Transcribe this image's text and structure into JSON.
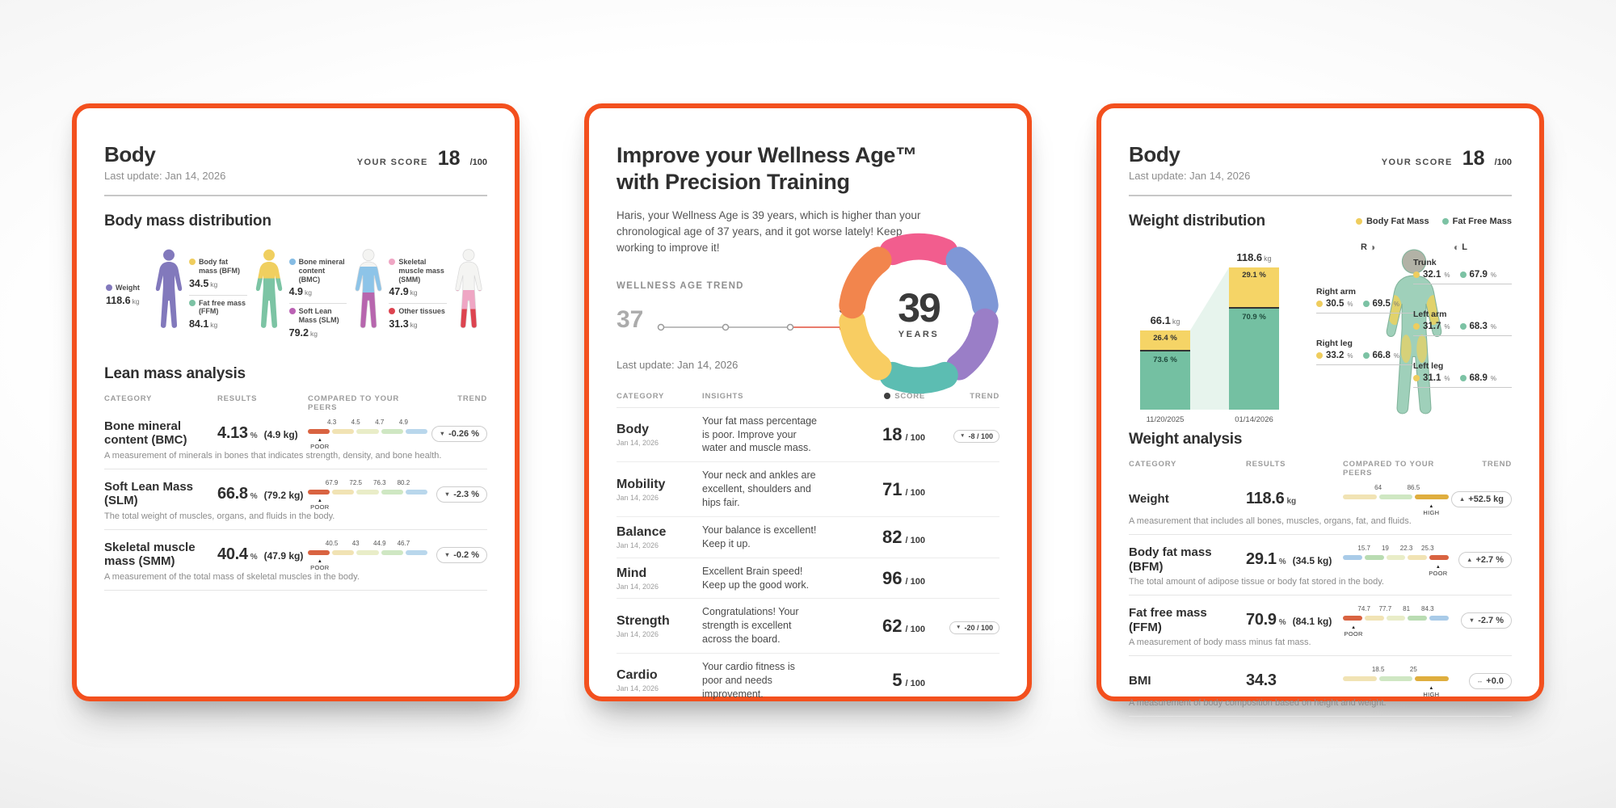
{
  "glyphs": {
    "caret": "▲",
    "down": "▼",
    "up": "▲",
    "flat": "↔",
    "rotate_right_icon": "◑",
    "rotate_left_icon": "◐"
  },
  "colors": {
    "accent": "#f3501e",
    "weight_purple": "#8279bc",
    "bfm_yellow": "#efcd5e",
    "ffm_green": "#7cc2a4",
    "bmc_blue": "#85bce4",
    "slm_magenta": "#bb62b4",
    "smm_pink": "#efa6c4",
    "other_red": "#dd4450",
    "peer_poor_red": "#d96341",
    "peer_high_gold": "#dfae3e",
    "score_dot": "#3f3f3f",
    "trend_line_red": "#e2503d",
    "ring": [
      "#f25d8e",
      "#7f97d6",
      "#9a7ec7",
      "#5cbdb2",
      "#f8cd62",
      "#f2854d"
    ]
  },
  "card1": {
    "title": "Body",
    "last_update": "Last update: Jan 14, 2026",
    "score": {
      "label": "YOUR SCORE",
      "value": "18",
      "max": "/100"
    },
    "distribution": {
      "title": "Body mass distribution",
      "groups": [
        {
          "items": [
            {
              "name": "Weight",
              "value": "118.6",
              "unit": "kg"
            }
          ]
        },
        {
          "items": [
            {
              "name": "Body fat mass (BFM)",
              "value": "34.5",
              "unit": "kg"
            },
            {
              "name": "Fat free mass (FFM)",
              "value": "84.1",
              "unit": "kg"
            }
          ]
        },
        {
          "items": [
            {
              "name": "Bone mineral content (BMC)",
              "value": "4.9",
              "unit": "kg"
            },
            {
              "name": "Soft Lean Mass (SLM)",
              "value": "79.2",
              "unit": "kg"
            }
          ]
        },
        {
          "items": [
            {
              "name": "Skeletal muscle mass (SMM)",
              "value": "47.9",
              "unit": "kg"
            },
            {
              "name": "Other tissues",
              "value": "31.3",
              "unit": "kg"
            }
          ]
        }
      ]
    },
    "analysis": {
      "title": "Lean mass analysis",
      "headers": {
        "category": "CATEGORY",
        "results": "RESULTS",
        "compared": "COMPARED TO YOUR PEERS",
        "trend": "TREND"
      },
      "rows": [
        {
          "name": "Bone mineral content (BMC)",
          "value": "4.13",
          "unit": "%",
          "secondary": "(4.9 kg)",
          "ticks": [
            "4.3",
            "4.5",
            "4.7",
            "4.9"
          ],
          "marker": "POOR",
          "trend_icon": "▼",
          "trend": "-0.26 %",
          "desc": "A measurement of minerals in bones that indicates strength, density, and bone health."
        },
        {
          "name": "Soft Lean Mass (SLM)",
          "value": "66.8",
          "unit": "%",
          "secondary": "(79.2 kg)",
          "ticks": [
            "67.9",
            "72.5",
            "76.3",
            "80.2"
          ],
          "marker": "POOR",
          "trend_icon": "▼",
          "trend": "-2.3 %",
          "desc": "The total weight of muscles, organs, and fluids in the body."
        },
        {
          "name": "Skeletal muscle mass (SMM)",
          "value": "40.4",
          "unit": "%",
          "secondary": "(47.9 kg)",
          "ticks": [
            "40.5",
            "43",
            "44.9",
            "46.7"
          ],
          "marker": "POOR",
          "trend_icon": "▼",
          "trend": "-0.2 %",
          "desc": "A measurement of the total mass of skeletal muscles in the body."
        }
      ]
    }
  },
  "card2": {
    "title_line1": "Improve your Wellness Age™",
    "title_line2": "with Precision Training",
    "intro": "Haris, your Wellness Age is 39 years, which is higher than your chronological age of 37 years, and it got worse lately! Keep working to improve it!",
    "trend_label": "WELLNESS AGE TREND",
    "trend_start": "37",
    "trend_end": "39",
    "last_update": "Last update: Jan 14, 2026",
    "ring": {
      "value": "39",
      "unit": "YEARS"
    },
    "table": {
      "headers": {
        "category": "CATEGORY",
        "insights": "INSIGHTS",
        "score": "SCORE",
        "trend": "TREND"
      },
      "rows": [
        {
          "category": "Body",
          "date": "Jan 14, 2026",
          "insight": "Your fat mass percentage is poor. Improve your water and muscle mass.",
          "score": "18",
          "score_max": "/ 100",
          "trend_icon": "▼",
          "trend": "-8 / 100"
        },
        {
          "category": "Mobility",
          "date": "Jan 14, 2026",
          "insight": "Your neck and ankles are excellent, shoulders and hips fair.",
          "score": "71",
          "score_max": "/ 100"
        },
        {
          "category": "Balance",
          "date": "Jan 14, 2026",
          "insight": "Your balance is excellent! Keep it up.",
          "score": "82",
          "score_max": "/ 100"
        },
        {
          "category": "Mind",
          "date": "Jan 14, 2026",
          "insight": "Excellent Brain speed! Keep up the good work.",
          "score": "96",
          "score_max": "/ 100"
        },
        {
          "category": "Strength",
          "date": "Jan 14, 2026",
          "insight": "Congratulations! Your strength is excellent across the board.",
          "score": "62",
          "score_max": "/ 100",
          "trend_icon": "▼",
          "trend": "-20 / 100"
        },
        {
          "category": "Cardio",
          "date": "Jan 14, 2026",
          "insight": "Your cardio fitness is poor and needs improvement.",
          "score": "5",
          "score_max": "/ 100"
        }
      ]
    }
  },
  "card3": {
    "title": "Body",
    "last_update": "Last update: Jan 14, 2026",
    "score": {
      "label": "YOUR SCORE",
      "value": "18",
      "max": "/100"
    },
    "distribution": {
      "title": "Weight distribution",
      "legend": [
        {
          "label": "Body Fat Mass"
        },
        {
          "label": "Fat Free Mass"
        }
      ],
      "bars": [
        {
          "total": "66.1",
          "unit": "kg",
          "fat_label": "26.4 %",
          "ffm_label": "73.6 %",
          "date": "11/20/2025",
          "total_num": 66.1,
          "fat_num": 26.4
        },
        {
          "total": "118.6",
          "unit": "kg",
          "fat_label": "29.1 %",
          "ffm_label": "70.9 %",
          "date": "01/14/2026",
          "total_num": 118.6,
          "fat_num": 29.1
        }
      ],
      "rotate": {
        "left_letter": "R",
        "right_letter": "L"
      },
      "segments": {
        "trunk": {
          "name": "Trunk",
          "fat": "32.1",
          "ffm": "67.9",
          "unit": "%"
        },
        "right_arm": {
          "name": "Right arm",
          "fat": "30.5",
          "ffm": "69.5",
          "unit": "%"
        },
        "left_arm": {
          "name": "Left arm",
          "fat": "31.7",
          "ffm": "68.3",
          "unit": "%"
        },
        "right_leg": {
          "name": "Right leg",
          "fat": "33.2",
          "ffm": "66.8",
          "unit": "%"
        },
        "left_leg": {
          "name": "Left leg",
          "fat": "31.1",
          "ffm": "68.9",
          "unit": "%"
        }
      }
    },
    "analysis": {
      "title": "Weight analysis",
      "headers": {
        "category": "CATEGORY",
        "results": "RESULTS",
        "compared": "COMPARED TO YOUR PEERS",
        "trend": "TREND"
      },
      "rows": [
        {
          "name": "Weight",
          "value": "118.6",
          "unit": "kg",
          "ticks": [
            "64",
            "86.5"
          ],
          "marker": "HIGH",
          "trend_icon": "▲",
          "trend": "+52.5 kg",
          "desc": "A measurement that includes all bones, muscles, organs, fat, and fluids."
        },
        {
          "name": "Body fat mass (BFM)",
          "value": "29.1",
          "unit": "%",
          "secondary": "(34.5 kg)",
          "ticks": [
            "15.7",
            "19",
            "22.3",
            "25.3"
          ],
          "marker": "POOR",
          "trend_icon": "▲",
          "trend": "+2.7 %",
          "desc": "The total amount of adipose tissue or body fat stored in the body."
        },
        {
          "name": "Fat free mass (FFM)",
          "value": "70.9",
          "unit": "%",
          "secondary": "(84.1 kg)",
          "ticks": [
            "74.7",
            "77.7",
            "81",
            "84.3"
          ],
          "marker": "POOR",
          "trend_icon": "▼",
          "trend": "-2.7 %",
          "desc": "A measurement of body mass minus fat mass."
        },
        {
          "name": "BMI",
          "value": "34.3",
          "unit": "",
          "ticks": [
            "18.5",
            "25"
          ],
          "marker": "HIGH",
          "trend_icon": "↔",
          "trend": "+0.0",
          "desc": "A measurement of body composition based on height and weight."
        }
      ]
    }
  }
}
